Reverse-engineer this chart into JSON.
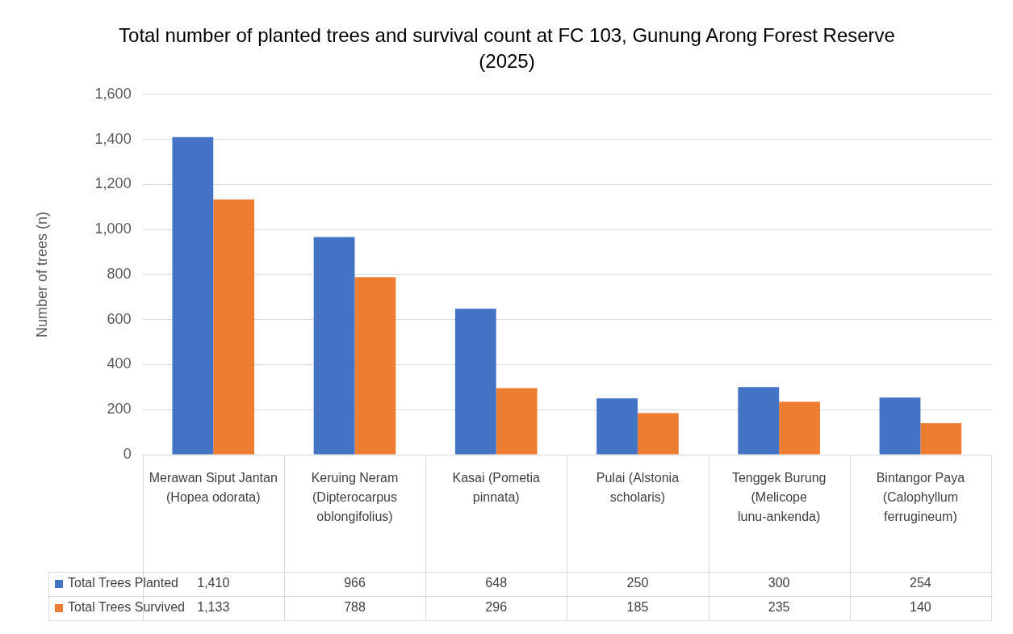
{
  "chart_data": {
    "type": "bar",
    "title": "Total number of planted trees and survival count at FC 103, Gunung Arong Forest Reserve (2025)",
    "ylabel": "Number of trees (n)",
    "categories": [
      "Merawan Siput Jantan (Hopea odorata)",
      "Keruing Neram (Dipterocarpus oblongifolius)",
      "Kasai (Pometia pinnata)",
      "Pulai (Alstonia scholaris)",
      "Tenggek Burung (Melicope lunu-ankenda)",
      "Bintangor Paya (Calophyllum ferrugineum)"
    ],
    "series": [
      {
        "name": "Total Trees Planted",
        "color": "#4472c4",
        "values": [
          1410,
          966,
          648,
          250,
          300,
          254
        ],
        "value_labels": [
          "1,410",
          "966",
          "648",
          "250",
          "300",
          "254"
        ]
      },
      {
        "name": "Total Trees Survived",
        "color": "#ed7d31",
        "values": [
          1133,
          788,
          296,
          185,
          235,
          140
        ],
        "value_labels": [
          "1,133",
          "788",
          "296",
          "185",
          "235",
          "140"
        ]
      }
    ],
    "ylim": [
      0,
      1600
    ],
    "yticks": [
      0,
      200,
      400,
      600,
      800,
      {
        "value": 1000,
        "label": "1,000"
      },
      {
        "value": 1200,
        "label": "1,200"
      },
      {
        "value": 1400,
        "label": "1,400"
      },
      {
        "value": 1600,
        "label": "1,600"
      }
    ],
    "grid": "y",
    "legend": "bottom"
  }
}
